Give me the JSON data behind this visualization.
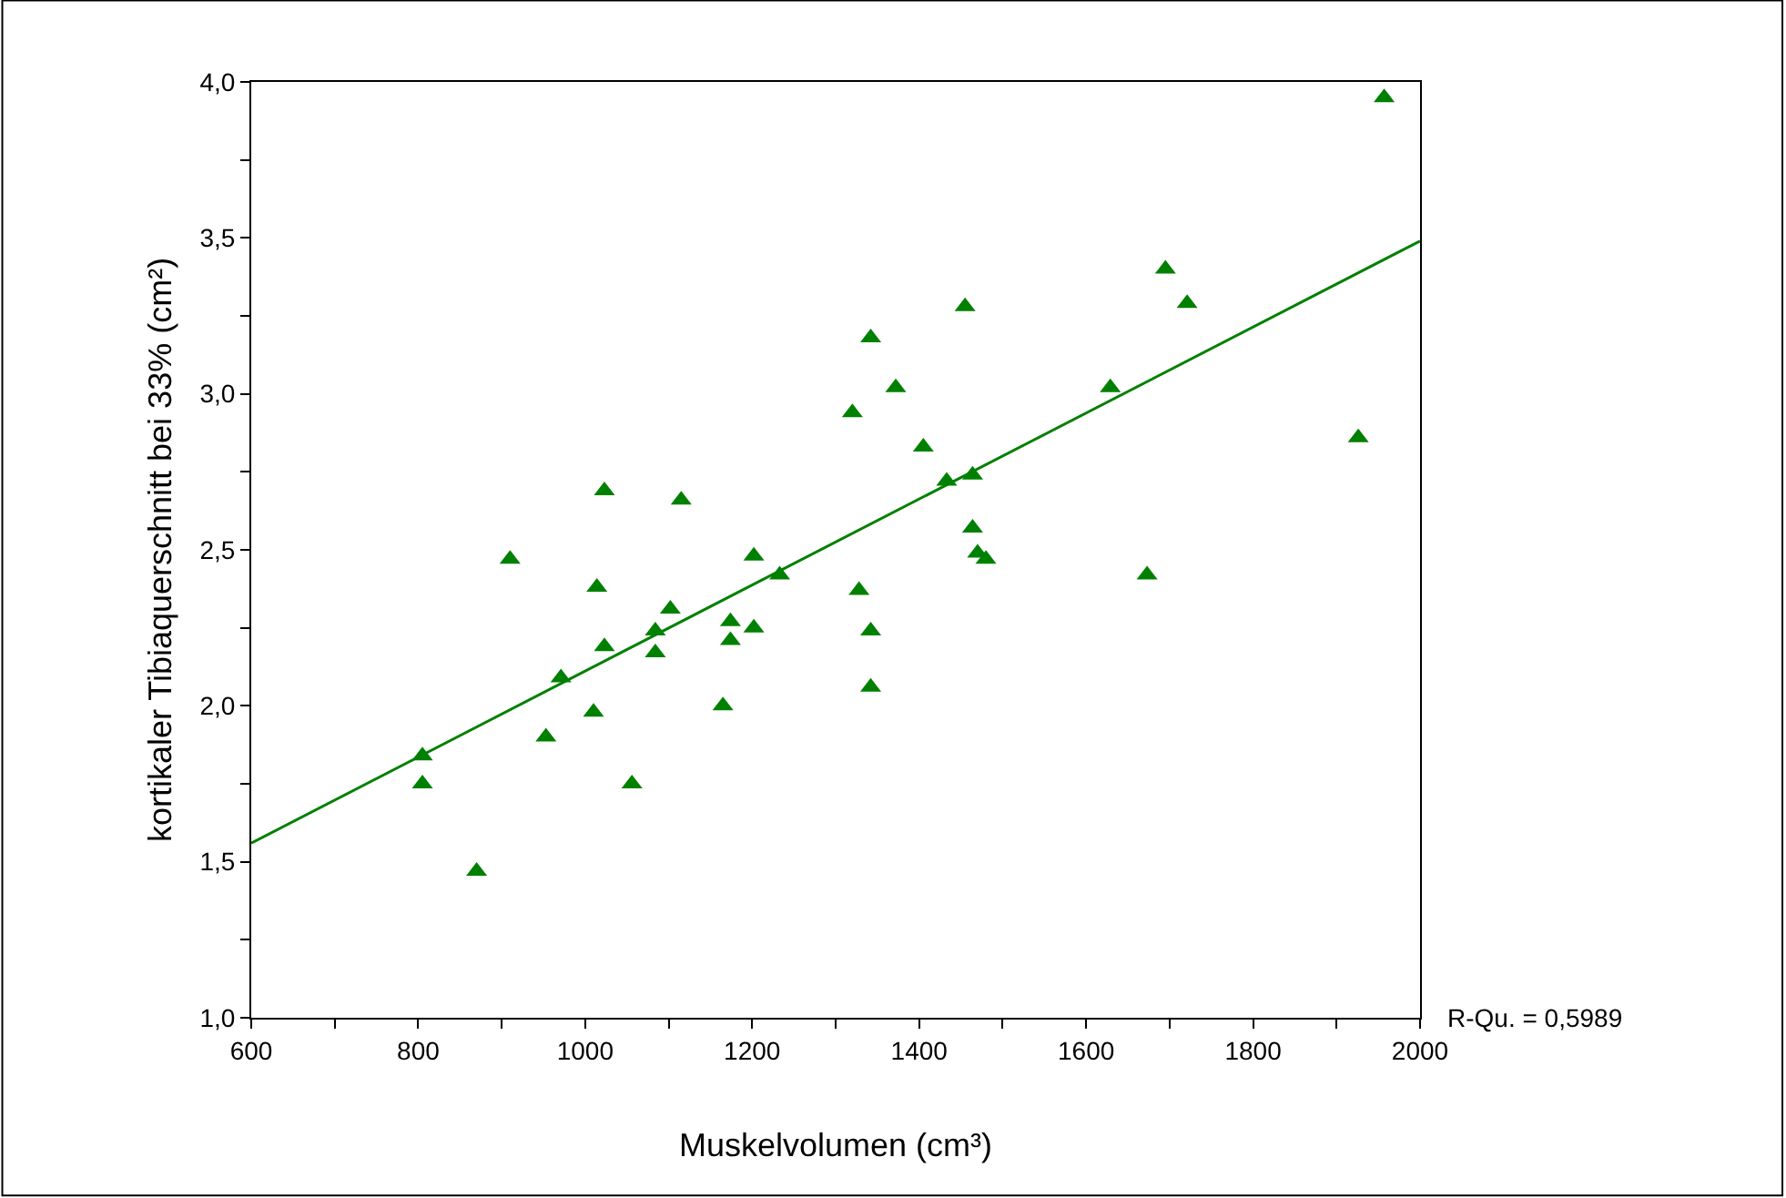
{
  "chart_data": {
    "type": "scatter",
    "xlabel": "Muskelvolumen (cm³)",
    "ylabel": "kortikaler Tibiaquerschnitt bei 33% (cm²)",
    "annotations": [
      "R-Qu. = 0,5989"
    ],
    "series": [
      {
        "color": "#008000",
        "marker": "triangle",
        "x": [
          805,
          805,
          870,
          910,
          953,
          971,
          1010,
          1014,
          1023,
          1023,
          1056,
          1084,
          1084,
          1102,
          1115,
          1165,
          1174,
          1174,
          1202,
          1202,
          1233,
          1320,
          1328,
          1342,
          1342,
          1342,
          1372,
          1405,
          1433,
          1455,
          1464,
          1464,
          1470,
          1480,
          1629,
          1673,
          1695,
          1721,
          1926,
          1957
        ],
        "values": [
          1.84,
          1.75,
          1.47,
          2.47,
          1.9,
          2.09,
          1.98,
          2.38,
          2.69,
          2.19,
          1.75,
          2.24,
          2.17,
          2.31,
          2.66,
          2.0,
          2.27,
          2.21,
          2.48,
          2.25,
          2.42,
          2.94,
          2.37,
          3.18,
          2.24,
          2.06,
          3.02,
          2.83,
          2.72,
          3.28,
          2.74,
          2.57,
          2.49,
          2.47,
          3.02,
          2.42,
          3.4,
          3.29,
          2.86,
          3.95
        ]
      },
      {
        "type": "line",
        "color": "#008000",
        "line_style": "solid",
        "x": [
          600,
          2000
        ],
        "values": [
          1.56,
          3.49
        ]
      }
    ],
    "xlim": [
      600,
      2000
    ],
    "ylim": [
      1.0,
      4.0
    ],
    "xticks": [
      600,
      {
        "value": 700,
        "label": null
      },
      800,
      {
        "value": 900,
        "label": null
      },
      1000,
      {
        "value": 1100,
        "label": null
      },
      1200,
      {
        "value": 1300,
        "label": null
      },
      1400,
      {
        "value": 1500,
        "label": null
      },
      1600,
      {
        "value": 1700,
        "label": null
      },
      1800,
      {
        "value": 1900,
        "label": null
      },
      2000
    ],
    "yticks": [
      {
        "value": 1.0,
        "label": "1,0"
      },
      {
        "value": 1.25,
        "label": null
      },
      {
        "value": 1.5,
        "label": "1,5"
      },
      {
        "value": 1.75,
        "label": null
      },
      {
        "value": 2.0,
        "label": "2,0"
      },
      {
        "value": 2.25,
        "label": null
      },
      {
        "value": 2.5,
        "label": "2,5"
      },
      {
        "value": 2.75,
        "label": null
      },
      {
        "value": 3.0,
        "label": "3,0"
      },
      {
        "value": 3.25,
        "label": null
      },
      {
        "value": 3.5,
        "label": "3,5"
      },
      {
        "value": 3.75,
        "label": null
      },
      {
        "value": 4.0,
        "label": "4,0"
      }
    ],
    "legend": false
  }
}
